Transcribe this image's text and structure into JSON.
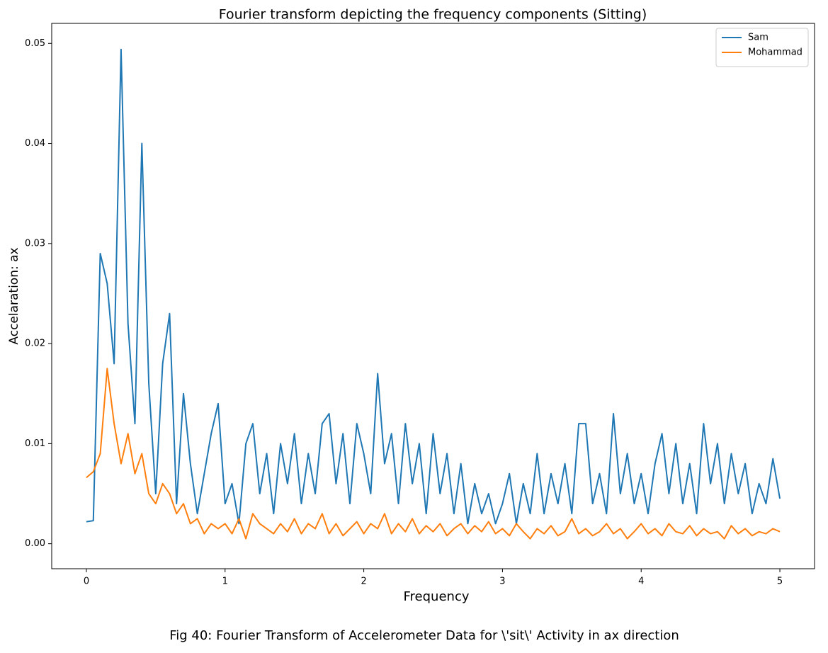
{
  "chart_data": {
    "type": "line",
    "title": "Fourier transform depicting the frequency components (Sitting)",
    "x_label": "Frequency",
    "y_label": "Accelaration: ax",
    "caption": "Fig 40: Fourier Transform of Accelerometer Data for \\'sit\\' Activity in ax direction",
    "legend": "upper right",
    "grid": false,
    "xlim": [
      -0.25,
      5.25
    ],
    "ylim": [
      -0.0025,
      0.052
    ],
    "xticks": [
      0,
      1,
      2,
      3,
      4,
      5
    ],
    "yticks": [
      {
        "value": 0,
        "label": "0.00"
      },
      0.01,
      0.02,
      0.03,
      0.04,
      0.05
    ],
    "x": [
      0,
      0.05,
      0.1,
      0.15,
      0.2,
      0.25,
      0.3,
      0.35,
      0.4,
      0.45,
      0.5,
      0.55,
      0.6,
      0.65,
      0.7,
      0.75,
      0.8,
      0.85,
      0.9,
      0.95,
      1,
      1.05,
      1.1,
      1.15,
      1.2,
      1.25,
      1.3,
      1.35,
      1.4,
      1.45,
      1.5,
      1.55,
      1.6,
      1.65,
      1.7,
      1.75,
      1.8,
      1.85,
      1.9,
      1.95,
      2,
      2.05,
      2.1,
      2.15,
      2.2,
      2.25,
      2.3,
      2.35,
      2.4,
      2.45,
      2.5,
      2.55,
      2.6,
      2.65,
      2.7,
      2.75,
      2.8,
      2.85,
      2.9,
      2.95,
      3,
      3.05,
      3.1,
      3.15,
      3.2,
      3.25,
      3.3,
      3.35,
      3.4,
      3.45,
      3.5,
      3.55,
      3.6,
      3.65,
      3.7,
      3.75,
      3.8,
      3.85,
      3.9,
      3.95,
      4,
      4.05,
      4.1,
      4.15,
      4.2,
      4.25,
      4.3,
      4.35,
      4.4,
      4.45,
      4.5,
      4.55,
      4.6,
      4.65,
      4.7,
      4.75,
      4.8,
      4.85,
      4.9,
      4.95,
      5
    ],
    "series": [
      {
        "name": "Sam",
        "color": "#1f77b4",
        "values": [
          0.0022,
          0.0023,
          0.029,
          0.026,
          0.018,
          0.0494,
          0.022,
          0.012,
          0.04,
          0.016,
          0.005,
          0.018,
          0.023,
          0.004,
          0.015,
          0.008,
          0.003,
          0.007,
          0.011,
          0.014,
          0.004,
          0.006,
          0.002,
          0.01,
          0.012,
          0.005,
          0.009,
          0.003,
          0.01,
          0.006,
          0.011,
          0.004,
          0.009,
          0.005,
          0.012,
          0.013,
          0.006,
          0.011,
          0.004,
          0.012,
          0.009,
          0.005,
          0.017,
          0.008,
          0.011,
          0.004,
          0.012,
          0.006,
          0.01,
          0.003,
          0.011,
          0.005,
          0.009,
          0.003,
          0.008,
          0.002,
          0.006,
          0.003,
          0.005,
          0.002,
          0.004,
          0.007,
          0.002,
          0.006,
          0.003,
          0.009,
          0.003,
          0.007,
          0.004,
          0.008,
          0.003,
          0.012,
          0.012,
          0.004,
          0.007,
          0.003,
          0.013,
          0.005,
          0.009,
          0.004,
          0.007,
          0.003,
          0.008,
          0.011,
          0.005,
          0.01,
          0.004,
          0.008,
          0.003,
          0.012,
          0.006,
          0.01,
          0.004,
          0.009,
          0.005,
          0.008,
          0.003,
          0.006,
          0.004,
          0.0085,
          0.0045
        ]
      },
      {
        "name": "Mohammad",
        "color": "#ff7f0e",
        "values": [
          0.0066,
          0.0072,
          0.009,
          0.0175,
          0.012,
          0.008,
          0.011,
          0.007,
          0.009,
          0.005,
          0.004,
          0.006,
          0.005,
          0.003,
          0.004,
          0.002,
          0.0025,
          0.001,
          0.002,
          0.0015,
          0.002,
          0.001,
          0.0025,
          0.0005,
          0.003,
          0.002,
          0.0015,
          0.001,
          0.002,
          0.0012,
          0.0025,
          0.001,
          0.002,
          0.0015,
          0.003,
          0.001,
          0.002,
          0.0008,
          0.0015,
          0.0022,
          0.001,
          0.002,
          0.0015,
          0.003,
          0.001,
          0.002,
          0.0012,
          0.0025,
          0.001,
          0.0018,
          0.0012,
          0.002,
          0.0008,
          0.0015,
          0.002,
          0.001,
          0.0018,
          0.0012,
          0.0022,
          0.001,
          0.0015,
          0.0008,
          0.002,
          0.0012,
          0.0005,
          0.0015,
          0.001,
          0.0018,
          0.0008,
          0.0012,
          0.0025,
          0.001,
          0.0015,
          0.0008,
          0.0012,
          0.002,
          0.001,
          0.0015,
          0.0005,
          0.0012,
          0.002,
          0.001,
          0.0015,
          0.0008,
          0.002,
          0.0012,
          0.001,
          0.0018,
          0.0008,
          0.0015,
          0.001,
          0.0012,
          0.0005,
          0.0018,
          0.001,
          0.0015,
          0.0008,
          0.0012,
          0.001,
          0.0015,
          0.0012
        ]
      }
    ]
  }
}
